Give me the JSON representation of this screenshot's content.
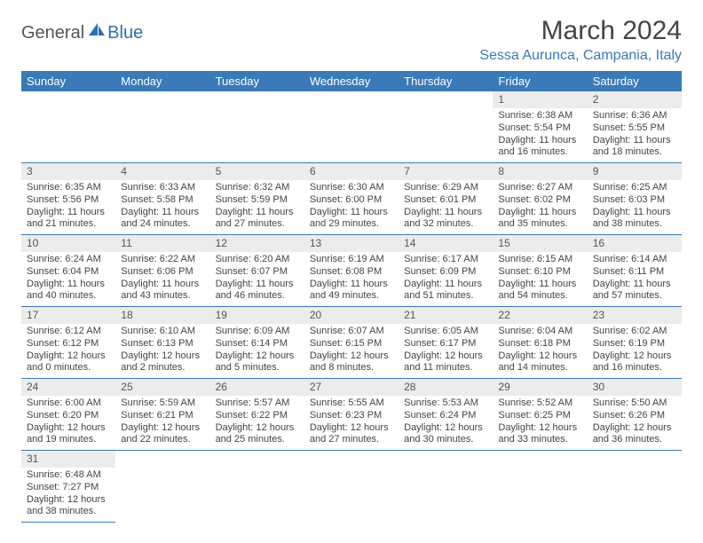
{
  "brand": {
    "part1": "General",
    "part2": "Blue"
  },
  "title": "March 2024",
  "location": "Sessa Aurunca, Campania, Italy",
  "colors": {
    "header_bg": "#3a7ab8",
    "header_fg": "#ffffff",
    "daynum_bg": "#ececec",
    "border": "#3a7ab8",
    "text": "#444444",
    "location": "#3a7ab8"
  },
  "weekdays": [
    "Sunday",
    "Monday",
    "Tuesday",
    "Wednesday",
    "Thursday",
    "Friday",
    "Saturday"
  ],
  "first_weekday_index": 5,
  "days": [
    {
      "n": 1,
      "sunrise": "6:38 AM",
      "sunset": "5:54 PM",
      "daylight": "11 hours and 16 minutes."
    },
    {
      "n": 2,
      "sunrise": "6:36 AM",
      "sunset": "5:55 PM",
      "daylight": "11 hours and 18 minutes."
    },
    {
      "n": 3,
      "sunrise": "6:35 AM",
      "sunset": "5:56 PM",
      "daylight": "11 hours and 21 minutes."
    },
    {
      "n": 4,
      "sunrise": "6:33 AM",
      "sunset": "5:58 PM",
      "daylight": "11 hours and 24 minutes."
    },
    {
      "n": 5,
      "sunrise": "6:32 AM",
      "sunset": "5:59 PM",
      "daylight": "11 hours and 27 minutes."
    },
    {
      "n": 6,
      "sunrise": "6:30 AM",
      "sunset": "6:00 PM",
      "daylight": "11 hours and 29 minutes."
    },
    {
      "n": 7,
      "sunrise": "6:29 AM",
      "sunset": "6:01 PM",
      "daylight": "11 hours and 32 minutes."
    },
    {
      "n": 8,
      "sunrise": "6:27 AM",
      "sunset": "6:02 PM",
      "daylight": "11 hours and 35 minutes."
    },
    {
      "n": 9,
      "sunrise": "6:25 AM",
      "sunset": "6:03 PM",
      "daylight": "11 hours and 38 minutes."
    },
    {
      "n": 10,
      "sunrise": "6:24 AM",
      "sunset": "6:04 PM",
      "daylight": "11 hours and 40 minutes."
    },
    {
      "n": 11,
      "sunrise": "6:22 AM",
      "sunset": "6:06 PM",
      "daylight": "11 hours and 43 minutes."
    },
    {
      "n": 12,
      "sunrise": "6:20 AM",
      "sunset": "6:07 PM",
      "daylight": "11 hours and 46 minutes."
    },
    {
      "n": 13,
      "sunrise": "6:19 AM",
      "sunset": "6:08 PM",
      "daylight": "11 hours and 49 minutes."
    },
    {
      "n": 14,
      "sunrise": "6:17 AM",
      "sunset": "6:09 PM",
      "daylight": "11 hours and 51 minutes."
    },
    {
      "n": 15,
      "sunrise": "6:15 AM",
      "sunset": "6:10 PM",
      "daylight": "11 hours and 54 minutes."
    },
    {
      "n": 16,
      "sunrise": "6:14 AM",
      "sunset": "6:11 PM",
      "daylight": "11 hours and 57 minutes."
    },
    {
      "n": 17,
      "sunrise": "6:12 AM",
      "sunset": "6:12 PM",
      "daylight": "12 hours and 0 minutes."
    },
    {
      "n": 18,
      "sunrise": "6:10 AM",
      "sunset": "6:13 PM",
      "daylight": "12 hours and 2 minutes."
    },
    {
      "n": 19,
      "sunrise": "6:09 AM",
      "sunset": "6:14 PM",
      "daylight": "12 hours and 5 minutes."
    },
    {
      "n": 20,
      "sunrise": "6:07 AM",
      "sunset": "6:15 PM",
      "daylight": "12 hours and 8 minutes."
    },
    {
      "n": 21,
      "sunrise": "6:05 AM",
      "sunset": "6:17 PM",
      "daylight": "12 hours and 11 minutes."
    },
    {
      "n": 22,
      "sunrise": "6:04 AM",
      "sunset": "6:18 PM",
      "daylight": "12 hours and 14 minutes."
    },
    {
      "n": 23,
      "sunrise": "6:02 AM",
      "sunset": "6:19 PM",
      "daylight": "12 hours and 16 minutes."
    },
    {
      "n": 24,
      "sunrise": "6:00 AM",
      "sunset": "6:20 PM",
      "daylight": "12 hours and 19 minutes."
    },
    {
      "n": 25,
      "sunrise": "5:59 AM",
      "sunset": "6:21 PM",
      "daylight": "12 hours and 22 minutes."
    },
    {
      "n": 26,
      "sunrise": "5:57 AM",
      "sunset": "6:22 PM",
      "daylight": "12 hours and 25 minutes."
    },
    {
      "n": 27,
      "sunrise": "5:55 AM",
      "sunset": "6:23 PM",
      "daylight": "12 hours and 27 minutes."
    },
    {
      "n": 28,
      "sunrise": "5:53 AM",
      "sunset": "6:24 PM",
      "daylight": "12 hours and 30 minutes."
    },
    {
      "n": 29,
      "sunrise": "5:52 AM",
      "sunset": "6:25 PM",
      "daylight": "12 hours and 33 minutes."
    },
    {
      "n": 30,
      "sunrise": "5:50 AM",
      "sunset": "6:26 PM",
      "daylight": "12 hours and 36 minutes."
    },
    {
      "n": 31,
      "sunrise": "6:48 AM",
      "sunset": "7:27 PM",
      "daylight": "12 hours and 38 minutes."
    }
  ],
  "labels": {
    "sunrise": "Sunrise:",
    "sunset": "Sunset:",
    "daylight": "Daylight:"
  }
}
